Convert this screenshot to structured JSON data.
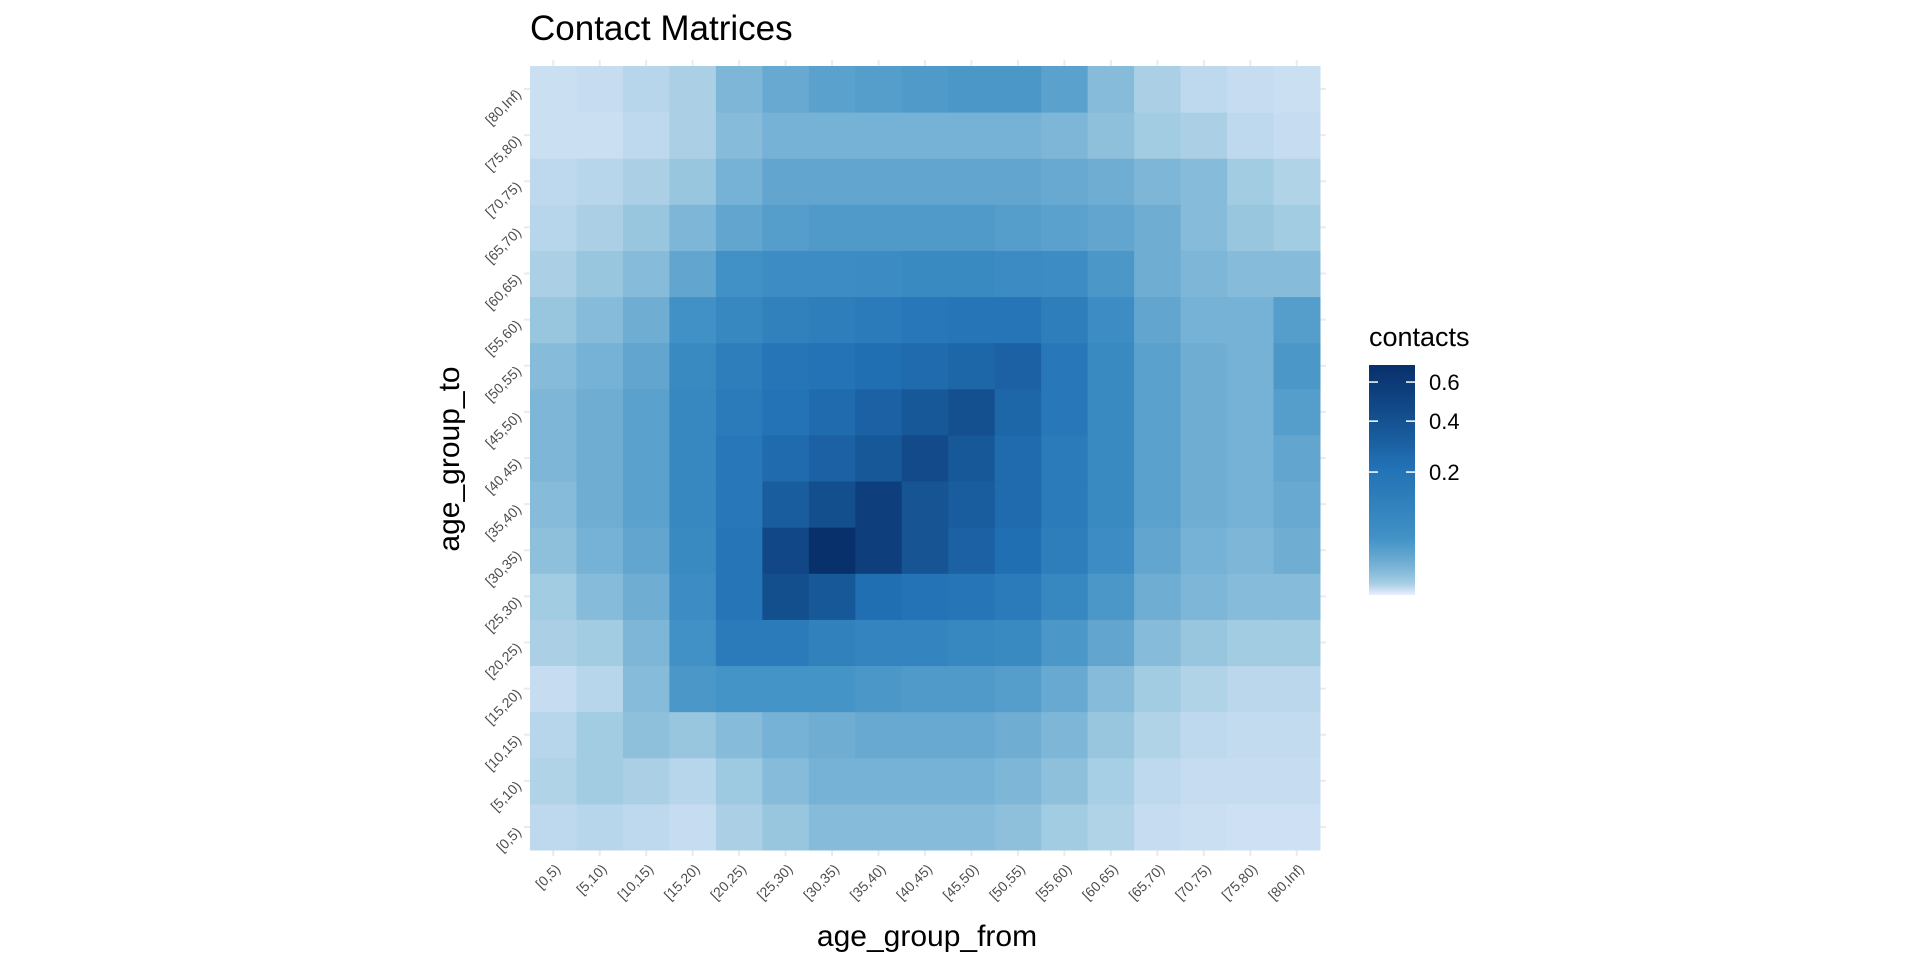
{
  "chart_data": {
    "type": "heatmap",
    "title": "Contact Matrices",
    "xlabel": "age_group_from",
    "ylabel": "age_group_to",
    "categories": [
      "[0,5)",
      "[5,10)",
      "[10,15)",
      "[15,20)",
      "[20,25)",
      "[25,30)",
      "[30,35)",
      "[35,40)",
      "[40,45)",
      "[45,50)",
      "[50,55)",
      "[55,60)",
      "[60,65)",
      "[65,70)",
      "[70,75)",
      "[75,80)",
      "[80,Inf)"
    ],
    "x_categories": [
      "[0,5)",
      "[5,10)",
      "[10,15)",
      "[15,20)",
      "[20,25)",
      "[25,30)",
      "[30,35)",
      "[35,40)",
      "[40,45)",
      "[45,50)",
      "[50,55)",
      "[55,60)",
      "[60,65)",
      "[65,70)",
      "[70,75)",
      "[75,80)",
      "[80,Inf)"
    ],
    "y_categories": [
      "[0,5)",
      "[5,10)",
      "[10,15)",
      "[15,20)",
      "[20,25)",
      "[25,30)",
      "[30,35)",
      "[35,40)",
      "[40,45)",
      "[45,50)",
      "[50,55)",
      "[55,60)",
      "[60,65)",
      "[65,70)",
      "[70,75)",
      "[75,80)",
      "[80,Inf)"
    ],
    "values": [
      [
        0.015,
        0.02,
        0.015,
        0.01,
        0.03,
        0.05,
        0.07,
        0.07,
        0.07,
        0.07,
        0.06,
        0.04,
        0.025,
        0.01,
        0.008,
        0.006,
        0.006
      ],
      [
        0.025,
        0.04,
        0.03,
        0.02,
        0.045,
        0.07,
        0.09,
        0.09,
        0.09,
        0.09,
        0.08,
        0.06,
        0.035,
        0.015,
        0.01,
        0.01,
        0.01
      ],
      [
        0.02,
        0.04,
        0.06,
        0.05,
        0.07,
        0.09,
        0.1,
        0.11,
        0.11,
        0.11,
        0.1,
        0.08,
        0.05,
        0.025,
        0.015,
        0.012,
        0.012
      ],
      [
        0.01,
        0.02,
        0.07,
        0.16,
        0.17,
        0.17,
        0.17,
        0.16,
        0.15,
        0.15,
        0.14,
        0.11,
        0.07,
        0.04,
        0.025,
        0.018,
        0.018
      ],
      [
        0.03,
        0.04,
        0.08,
        0.18,
        0.32,
        0.32,
        0.28,
        0.26,
        0.26,
        0.24,
        0.22,
        0.16,
        0.12,
        0.07,
        0.05,
        0.04,
        0.04
      ],
      [
        0.04,
        0.07,
        0.1,
        0.2,
        0.36,
        0.55,
        0.5,
        0.4,
        0.38,
        0.36,
        0.32,
        0.24,
        0.16,
        0.1,
        0.08,
        0.07,
        0.07
      ],
      [
        0.06,
        0.09,
        0.12,
        0.22,
        0.36,
        0.58,
        0.7,
        0.62,
        0.52,
        0.46,
        0.4,
        0.3,
        0.2,
        0.12,
        0.09,
        0.08,
        0.1
      ],
      [
        0.07,
        0.1,
        0.13,
        0.24,
        0.34,
        0.48,
        0.55,
        0.62,
        0.52,
        0.48,
        0.42,
        0.32,
        0.22,
        0.13,
        0.1,
        0.09,
        0.11
      ],
      [
        0.08,
        0.1,
        0.13,
        0.24,
        0.34,
        0.42,
        0.46,
        0.5,
        0.56,
        0.5,
        0.42,
        0.32,
        0.22,
        0.13,
        0.1,
        0.09,
        0.12
      ],
      [
        0.08,
        0.1,
        0.13,
        0.24,
        0.32,
        0.38,
        0.42,
        0.46,
        0.5,
        0.54,
        0.44,
        0.34,
        0.22,
        0.13,
        0.1,
        0.09,
        0.14
      ],
      [
        0.07,
        0.09,
        0.12,
        0.22,
        0.3,
        0.36,
        0.38,
        0.4,
        0.42,
        0.44,
        0.46,
        0.34,
        0.22,
        0.13,
        0.1,
        0.09,
        0.16
      ],
      [
        0.05,
        0.07,
        0.1,
        0.18,
        0.24,
        0.28,
        0.3,
        0.32,
        0.34,
        0.36,
        0.36,
        0.3,
        0.2,
        0.12,
        0.09,
        0.09,
        0.14
      ],
      [
        0.03,
        0.05,
        0.07,
        0.12,
        0.18,
        0.2,
        0.2,
        0.21,
        0.22,
        0.22,
        0.21,
        0.2,
        0.16,
        0.1,
        0.08,
        0.07,
        0.07
      ],
      [
        0.02,
        0.03,
        0.05,
        0.08,
        0.12,
        0.14,
        0.15,
        0.15,
        0.15,
        0.15,
        0.14,
        0.13,
        0.12,
        0.1,
        0.07,
        0.05,
        0.04
      ],
      [
        0.015,
        0.02,
        0.03,
        0.05,
        0.09,
        0.12,
        0.12,
        0.12,
        0.12,
        0.12,
        0.12,
        0.11,
        0.1,
        0.08,
        0.07,
        0.04,
        0.025
      ],
      [
        0.008,
        0.008,
        0.015,
        0.03,
        0.07,
        0.09,
        0.09,
        0.09,
        0.09,
        0.09,
        0.09,
        0.08,
        0.06,
        0.04,
        0.03,
        0.015,
        0.01
      ],
      [
        0.008,
        0.01,
        0.02,
        0.03,
        0.08,
        0.11,
        0.13,
        0.14,
        0.15,
        0.16,
        0.16,
        0.13,
        0.07,
        0.03,
        0.015,
        0.01,
        0.008
      ]
    ],
    "values_note_order": "rows follow y_categories from [0,5) to [80,Inf); columns follow x_categories",
    "legend": {
      "title": "contacts",
      "ticks": [
        0.2,
        0.4,
        0.6
      ],
      "tick_labels": [
        "0.2",
        "0.4",
        "0.6"
      ],
      "range": [
        0,
        0.7
      ]
    },
    "colorscale": [
      "#ebeeff",
      "#9ecae1",
      "#4292c6",
      "#2171b5",
      "#08306b"
    ],
    "grid": true,
    "legend_placement": "right"
  }
}
